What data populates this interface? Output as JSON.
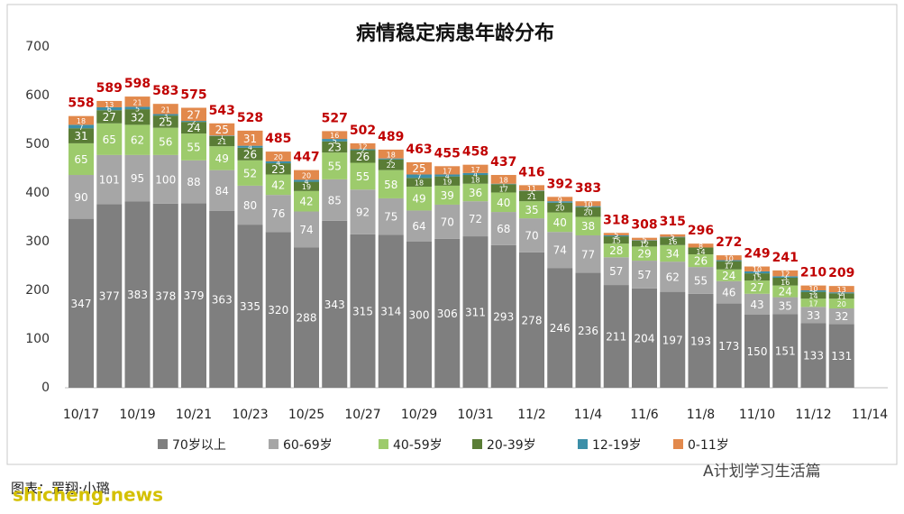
{
  "chart_data": {
    "type": "stacked-bar",
    "title": "病情稳定病患年龄分布",
    "categories": [
      "10/17",
      null,
      "10/19",
      null,
      "10/21",
      null,
      "10/23",
      null,
      "10/25",
      null,
      "10/27",
      null,
      "10/29",
      null,
      "10/31",
      null,
      "11/2",
      null,
      "11/4",
      null,
      "11/6",
      null,
      "11/8",
      null,
      "11/10",
      null,
      "11/12",
      null,
      "11/14"
    ],
    "series": [
      {
        "name": "70岁以上",
        "color": "#7f7f7f",
        "values": [
          347,
          377,
          383,
          378,
          379,
          363,
          335,
          320,
          288,
          343,
          315,
          314,
          300,
          306,
          311,
          293,
          278,
          246,
          236,
          211,
          204,
          197,
          193,
          173,
          150,
          151,
          133,
          131,
          null
        ]
      },
      {
        "name": "60-69岁",
        "color": "#a6a6a6",
        "values": [
          90,
          101,
          95,
          100,
          88,
          84,
          80,
          76,
          74,
          85,
          92,
          75,
          64,
          70,
          72,
          68,
          70,
          74,
          77,
          57,
          57,
          62,
          55,
          46,
          43,
          35,
          33,
          32,
          null
        ]
      },
      {
        "name": "40-59岁",
        "color": "#9dcb6c",
        "values": [
          65,
          65,
          62,
          56,
          55,
          49,
          52,
          42,
          42,
          55,
          55,
          58,
          49,
          39,
          36,
          40,
          35,
          40,
          38,
          28,
          29,
          34,
          26,
          24,
          27,
          24,
          17,
          20,
          null
        ]
      },
      {
        "name": "20-39岁",
        "color": "#5a7d36",
        "values": [
          31,
          27,
          32,
          25,
          24,
          21,
          26,
          23,
          19,
          23,
          26,
          22,
          18,
          19,
          18,
          17,
          21,
          20,
          20,
          15,
          12,
          16,
          14,
          17,
          15,
          16,
          14,
          11,
          null
        ]
      },
      {
        "name": "12-19岁",
        "color": "#3c8fa8",
        "values": [
          7,
          6,
          5,
          3,
          2,
          1,
          4,
          4,
          4,
          5,
          2,
          2,
          7,
          4,
          4,
          1,
          1,
          3,
          2,
          2,
          1,
          1,
          0,
          2,
          4,
          3,
          3,
          2,
          null
        ]
      },
      {
        "name": "0-11岁",
        "color": "#e2894c",
        "values": [
          18,
          13,
          21,
          21,
          27,
          25,
          31,
          20,
          20,
          16,
          12,
          18,
          25,
          17,
          17,
          18,
          11,
          9,
          10,
          5,
          5,
          5,
          8,
          10,
          10,
          12,
          10,
          13,
          null
        ]
      }
    ],
    "totals": [
      558,
      589,
      598,
      583,
      575,
      543,
      528,
      485,
      447,
      527,
      502,
      489,
      463,
      455,
      458,
      437,
      416,
      392,
      383,
      318,
      308,
      315,
      296,
      272,
      249,
      241,
      210,
      209,
      null
    ],
    "total_color": "#c00000",
    "ylim": [
      0,
      700
    ],
    "yticks": [
      0,
      100,
      200,
      300,
      400,
      500,
      600,
      700
    ],
    "grid": false,
    "legend": "bottom",
    "source": "图表：罡翔·小璐",
    "watermark": "A计划学习生活篇",
    "site": "shicheng.news"
  }
}
